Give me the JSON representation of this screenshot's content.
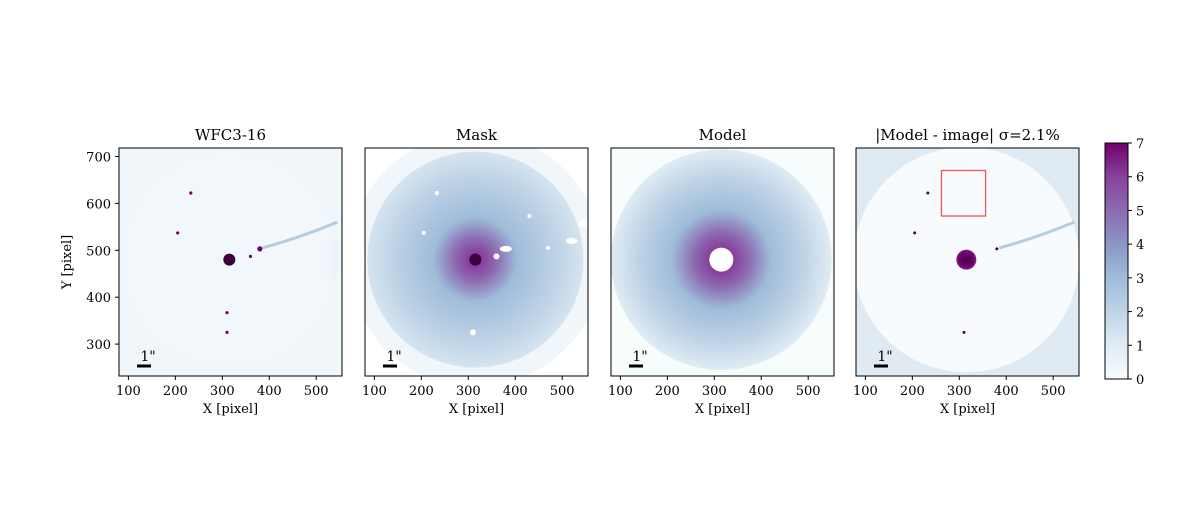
{
  "chart_data": [
    {
      "type": "heatmap",
      "title": "WFC3-16",
      "xlabel": "X [pixel]",
      "ylabel": "Y [pixel]",
      "xlim": [
        80,
        555
      ],
      "ylim": [
        232,
        718
      ],
      "xticks": [
        100,
        200,
        300,
        400,
        500
      ],
      "yticks": [
        300,
        400,
        500,
        600,
        700
      ],
      "scalebar_label": "1\"",
      "center": [
        315,
        480
      ],
      "features": {
        "sources": [
          [
            380,
            503
          ],
          [
            360,
            487
          ],
          [
            310,
            325
          ],
          [
            205,
            537
          ],
          [
            233,
            622
          ],
          [
            310,
            367
          ]
        ]
      }
    },
    {
      "type": "heatmap",
      "title": "Mask",
      "xlabel": "X [pixel]",
      "ylabel": "",
      "xlim": [
        80,
        555
      ],
      "ylim": [
        232,
        718
      ],
      "xticks": [
        100,
        200,
        300,
        400,
        500
      ],
      "scalebar_label": "1\"",
      "center": [
        315,
        480
      ]
    },
    {
      "type": "heatmap",
      "title": "Model",
      "xlabel": "X [pixel]",
      "ylabel": "",
      "xlim": [
        80,
        555
      ],
      "ylim": [
        232,
        718
      ],
      "xticks": [
        100,
        200,
        300,
        400,
        500
      ],
      "scalebar_label": "1\"",
      "center": [
        315,
        480
      ]
    },
    {
      "type": "heatmap",
      "title": "|Model - image| σ=2.1%",
      "xlabel": "X [pixel]",
      "ylabel": "",
      "xlim": [
        80,
        555
      ],
      "ylim": [
        232,
        718
      ],
      "xticks": [
        100,
        200,
        300,
        400,
        500
      ],
      "scalebar_label": "1\"",
      "center": [
        315,
        480
      ],
      "box": {
        "x": [
          262,
          356
        ],
        "y": [
          573,
          670
        ]
      }
    }
  ],
  "colorbar": {
    "range": [
      0,
      7
    ],
    "ticks": [
      0,
      1,
      2,
      3,
      4,
      5,
      6,
      7
    ],
    "colormap": [
      "#f7fcfd",
      "#e0ecf4",
      "#bfd3e6",
      "#9ebcda",
      "#8c96c6",
      "#8c6bb1",
      "#88419d",
      "#6e016b"
    ]
  },
  "colors": {
    "box": "#e8575a",
    "mask_fill": "#ffffff"
  }
}
